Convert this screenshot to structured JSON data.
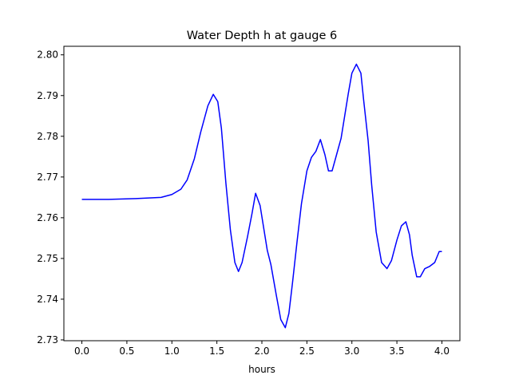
{
  "chart_data": {
    "type": "line",
    "title": "Water Depth h at gauge 6",
    "xlabel": "hours",
    "ylabel": "",
    "xlim": [
      -0.2,
      4.2
    ],
    "ylim": [
      2.7298,
      2.8021
    ],
    "xticks": [
      0.0,
      0.5,
      1.0,
      1.5,
      2.0,
      2.5,
      3.0,
      3.5,
      4.0
    ],
    "xtick_labels": [
      "0.0",
      "0.5",
      "1.0",
      "1.5",
      "2.0",
      "2.5",
      "3.0",
      "3.5",
      "4.0"
    ],
    "yticks": [
      2.73,
      2.74,
      2.75,
      2.76,
      2.77,
      2.78,
      2.79,
      2.8
    ],
    "ytick_labels": [
      "2.73",
      "2.74",
      "2.75",
      "2.76",
      "2.77",
      "2.78",
      "2.79",
      "2.80"
    ],
    "grid": false,
    "series": [
      {
        "color": "#0000ff",
        "x": [
          0.0,
          0.3,
          0.6,
          0.88,
          1.0,
          1.1,
          1.17,
          1.25,
          1.32,
          1.4,
          1.46,
          1.51,
          1.55,
          1.6,
          1.65,
          1.7,
          1.74,
          1.78,
          1.84,
          1.89,
          1.93,
          1.98,
          2.02,
          2.06,
          2.1,
          2.16,
          2.21,
          2.26,
          2.3,
          2.34,
          2.39,
          2.44,
          2.5,
          2.55,
          2.6,
          2.65,
          2.7,
          2.74,
          2.78,
          2.83,
          2.88,
          2.92,
          2.96,
          3.0,
          3.05,
          3.1,
          3.13,
          3.18,
          3.22,
          3.27,
          3.33,
          3.39,
          3.44,
          3.5,
          3.55,
          3.6,
          3.64,
          3.67,
          3.72,
          3.76,
          3.81,
          3.86,
          3.92,
          3.97,
          4.0
        ],
        "y": [
          2.7645,
          2.7645,
          2.7647,
          2.765,
          2.7657,
          2.767,
          2.7693,
          2.7745,
          2.781,
          2.7875,
          2.7903,
          2.7885,
          2.782,
          2.7685,
          2.757,
          2.749,
          2.7468,
          2.749,
          2.7553,
          2.761,
          2.766,
          2.763,
          2.7575,
          2.752,
          2.7485,
          2.741,
          2.735,
          2.733,
          2.7365,
          2.744,
          2.754,
          2.7635,
          2.7715,
          2.7748,
          2.7763,
          2.7792,
          2.7755,
          2.7715,
          2.7715,
          2.7755,
          2.7795,
          2.785,
          2.7905,
          2.7955,
          2.7977,
          2.7955,
          2.789,
          2.779,
          2.768,
          2.7565,
          2.749,
          2.7475,
          2.7495,
          2.7545,
          2.758,
          2.759,
          2.7558,
          2.7508,
          2.7455,
          2.7455,
          2.7475,
          2.748,
          2.749,
          2.7517,
          2.7517
        ]
      }
    ]
  }
}
